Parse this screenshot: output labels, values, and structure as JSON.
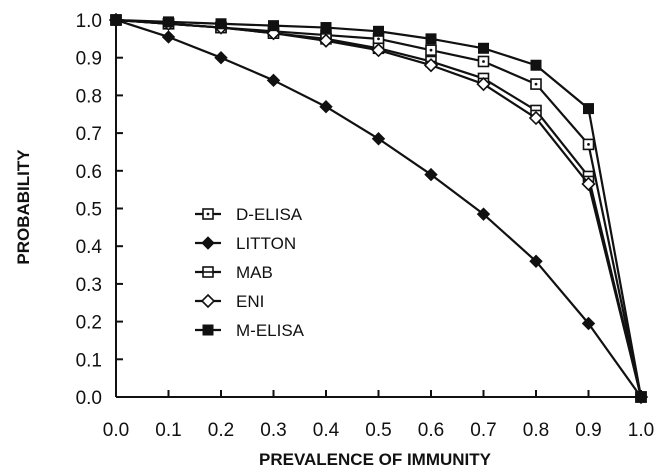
{
  "chart_data": {
    "type": "line",
    "title": "",
    "xlabel": "PREVALENCE OF IMMUNITY",
    "ylabel": "PROBABILITY",
    "xlim": [
      0.0,
      1.0
    ],
    "ylim": [
      0.0,
      1.0
    ],
    "grid": false,
    "legend_position": "center-left",
    "x_ticks": [
      "0.0",
      "0.1",
      "0.2",
      "0.3",
      "0.4",
      "0.5",
      "0.6",
      "0.7",
      "0.8",
      "0.9",
      "1.0"
    ],
    "y_ticks": [
      "0.0",
      "0.1",
      "0.2",
      "0.3",
      "0.4",
      "0.5",
      "0.6",
      "0.7",
      "0.8",
      "0.9",
      "1.0"
    ],
    "x": [
      0.0,
      0.1,
      0.2,
      0.3,
      0.4,
      0.5,
      0.6,
      0.7,
      0.8,
      0.9,
      1.0
    ],
    "series": [
      {
        "name": "D-ELISA",
        "marker": "open-square-dot",
        "values": [
          1.0,
          0.99,
          0.98,
          0.97,
          0.96,
          0.95,
          0.92,
          0.89,
          0.83,
          0.67,
          0.0
        ]
      },
      {
        "name": "LITTON",
        "marker": "filled-diamond",
        "values": [
          1.0,
          0.955,
          0.9,
          0.84,
          0.77,
          0.685,
          0.59,
          0.485,
          0.36,
          0.195,
          0.0
        ]
      },
      {
        "name": "MAB",
        "marker": "open-square-bar",
        "values": [
          1.0,
          0.99,
          0.98,
          0.965,
          0.95,
          0.925,
          0.89,
          0.845,
          0.76,
          0.585,
          0.0
        ]
      },
      {
        "name": "ENI",
        "marker": "open-diamond",
        "values": [
          1.0,
          0.99,
          0.98,
          0.965,
          0.945,
          0.92,
          0.88,
          0.83,
          0.74,
          0.565,
          0.0
        ]
      },
      {
        "name": "M-ELISA",
        "marker": "filled-square",
        "values": [
          1.0,
          0.995,
          0.99,
          0.985,
          0.98,
          0.97,
          0.95,
          0.925,
          0.88,
          0.765,
          0.0
        ]
      }
    ]
  }
}
